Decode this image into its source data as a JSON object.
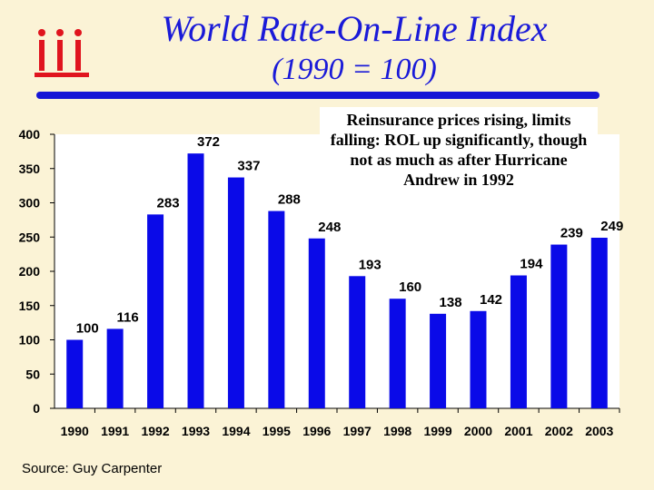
{
  "title": {
    "line1": "World Rate-On-Line Index",
    "line2": "(1990 = 100)"
  },
  "logo": {
    "icon": "iii-logo-icon",
    "color": "#e0141e"
  },
  "annotation": "Reinsurance prices rising, limits falling: ROL up significantly, though not as much as after Hurricane Andrew in 1992",
  "source": "Source: Guy Carpenter",
  "colors": {
    "bar": "#0a0ae8",
    "title": "#1a1ad8",
    "background": "#fbf3d6"
  },
  "chart_data": {
    "type": "bar",
    "title": "World Rate-On-Line Index (1990 = 100)",
    "xlabel": "",
    "ylabel": "",
    "categories": [
      "1990",
      "1991",
      "1992",
      "1993",
      "1994",
      "1995",
      "1996",
      "1997",
      "1998",
      "1999",
      "2000",
      "2001",
      "2002",
      "2003"
    ],
    "values": [
      100,
      116,
      283,
      372,
      337,
      288,
      248,
      193,
      160,
      138,
      142,
      194,
      239,
      249
    ],
    "ylim": [
      0,
      400
    ],
    "yticks": [
      0,
      50,
      100,
      150,
      200,
      250,
      300,
      350,
      400
    ],
    "grid": false,
    "legend": "none"
  }
}
